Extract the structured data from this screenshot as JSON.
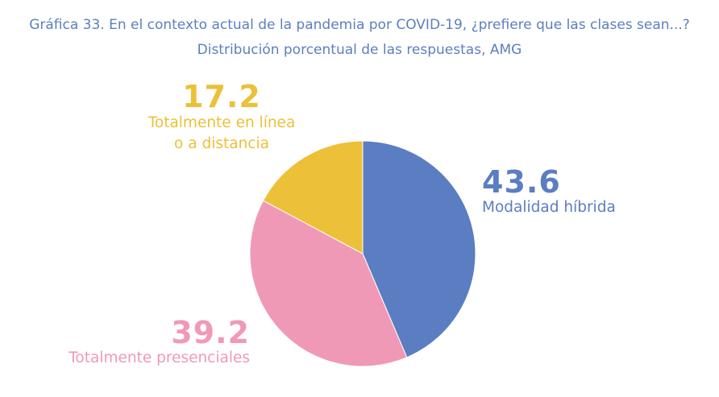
{
  "title": {
    "line1": "Gráfica 33. En el contexto actual de la pandemia por COVID-19, ¿prefiere que las clases sean...?",
    "line2": "Distribución porcentual de las respuestas, AMG"
  },
  "chart_data": {
    "type": "pie",
    "title": "Gráfica 33. En el contexto actual de la pandemia por COVID-19, ¿prefiere que las clases sean...?",
    "subtitle": "Distribución porcentual de las respuestas, AMG",
    "slices": [
      {
        "label": "Modalidad híbrida",
        "value": 43.6,
        "value_text": "43.6",
        "color": "#5b7dc1"
      },
      {
        "label": "Totalmente presenciales",
        "value": 39.2,
        "value_text": "39.2",
        "color": "#f099b6"
      },
      {
        "label": "Totalmente en línea o a distancia",
        "label_lines": [
          "Totalmente en línea",
          "o a distancia"
        ],
        "value": 17.2,
        "value_text": "17.2",
        "color": "#ecc038"
      }
    ],
    "start": "12 o'clock",
    "direction": "clockwise"
  }
}
